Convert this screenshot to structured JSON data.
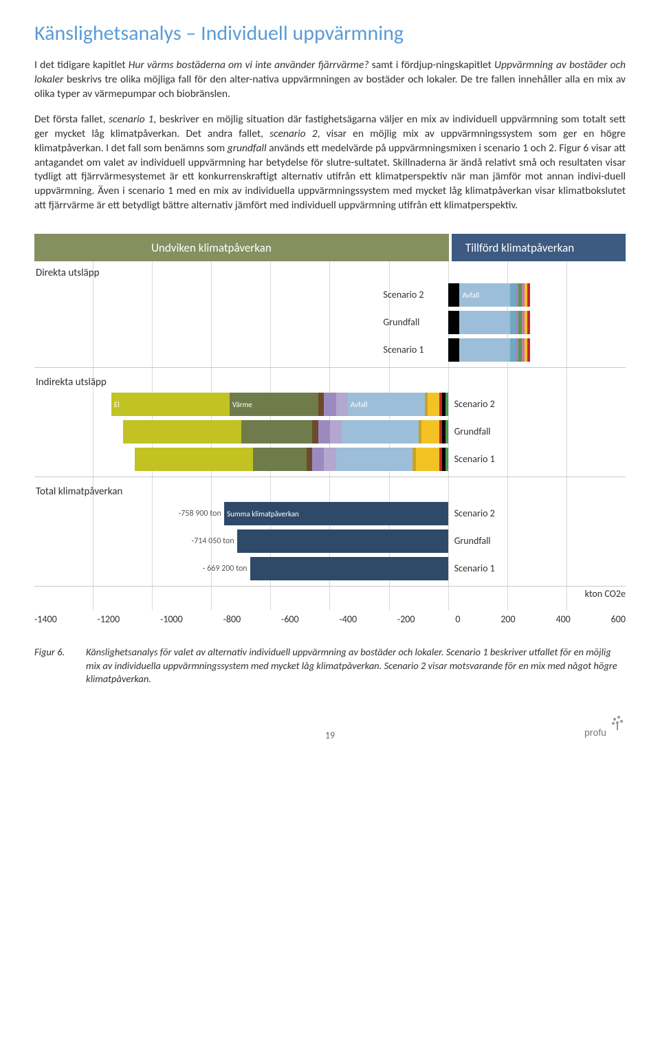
{
  "title": "Känslighetsanalys – Individuell uppvärmning",
  "para1_pre": "I det tidigare kapitlet ",
  "para1_it1": "Hur värms bostäderna om vi inte använder fjärrvärme?",
  "para1_mid": " samt i fördjup-ningskapitlet ",
  "para1_it2": "Uppvärmning av bostäder och lokaler",
  "para1_post": " beskrivs tre olika möjliga fall för den alter-nativa uppvärmningen av bostäder och lokaler. De tre fallen innehåller alla en mix av olika typer av värmepumpar och biobränslen.",
  "para2_a": "Det första fallet, ",
  "para2_it1": "scenario 1",
  "para2_b": ", beskriver en möjlig situation där fastighetsägarna väljer en mix av individuell uppvärmning som totalt sett ger mycket låg klimatpåverkan. Det andra fallet, ",
  "para2_it2": "scenario 2",
  "para2_c": ", visar en möjlig mix av uppvärmningssystem som ger en högre klimatpåverkan. I det fall som benämns som ",
  "para2_it3": "grundfall",
  "para2_d": " används ett medelvärde på uppvärmningsmixen i scenario 1 och 2. Figur 6 visar att antagandet om valet av individuell uppvärmning har betydelse för slutre-sultatet. Skillnaderna är ändå relativt små och resultaten visar tydligt att fjärrvärmesystemet är ett konkurrenskraftigt alternativ utifrån ett klimatperspektiv när man jämför mot annan indivi-duell uppvärmning. Även i scenario 1 med en mix av individuella uppvärmningssystem med mycket låg klimatpåverkan visar klimatbokslutet att fjärrvärme är ett betydligt bättre alternativ jämfört med individuell uppvärmning utifrån ett klimatperspektiv.",
  "chart": {
    "header_left": "Undviken klimatpåverkan",
    "header_right": "Tillförd klimatpåverkan",
    "xmin": -1400,
    "xmax": 600,
    "zero_pct": 70,
    "section1_label": "Direkta utsläpp",
    "section2_label": "Indirekta utsläpp",
    "section3_label": "Total klimatpåverkan",
    "unit": "kton CO2e",
    "ticks": [
      "-1400",
      "-1200",
      "-1000",
      "-800",
      "-600",
      "-400",
      "-200",
      "0",
      "200",
      "400",
      "600"
    ],
    "colors": {
      "el": "#c2c223",
      "varme": "#6f7b4a",
      "brown": "#6d4a2c",
      "violet": "#9b8abf",
      "lpurp": "#b3a7cf",
      "avfall": "#9cbed8",
      "yellow": "#f3c326",
      "gold": "#c9a227",
      "black": "#000000",
      "red": "#c62828",
      "green": "#4e9b4e",
      "navy": "#2e4a68",
      "teal": "#6ea9c2",
      "pink": "#c77ab0"
    },
    "direct_rows": [
      {
        "label": "Scenario 2",
        "pos": [
          {
            "c": "black",
            "w": 2.0
          },
          {
            "c": "avfall",
            "w": 9.0,
            "t": "Avfall"
          },
          {
            "c": "teal",
            "w": 1.0
          },
          {
            "c": "violet",
            "w": 0.5
          },
          {
            "c": "green",
            "w": 0.5
          },
          {
            "c": "pink",
            "w": 0.3
          },
          {
            "c": "yellow",
            "w": 0.3
          },
          {
            "c": "red",
            "w": 0.2
          }
        ]
      },
      {
        "label": "Grundfall",
        "pos": [
          {
            "c": "black",
            "w": 2.0
          },
          {
            "c": "avfall",
            "w": 9.0
          },
          {
            "c": "teal",
            "w": 1.0
          },
          {
            "c": "violet",
            "w": 0.5
          },
          {
            "c": "green",
            "w": 0.5
          },
          {
            "c": "pink",
            "w": 0.3
          },
          {
            "c": "yellow",
            "w": 0.3
          },
          {
            "c": "red",
            "w": 0.2
          }
        ]
      },
      {
        "label": "Scenario 1",
        "pos": [
          {
            "c": "black",
            "w": 2.0
          },
          {
            "c": "avfall",
            "w": 9.0
          },
          {
            "c": "teal",
            "w": 1.0
          },
          {
            "c": "violet",
            "w": 0.5
          },
          {
            "c": "green",
            "w": 0.5
          },
          {
            "c": "pink",
            "w": 0.3
          },
          {
            "c": "yellow",
            "w": 0.3
          },
          {
            "c": "red",
            "w": 0.2
          }
        ]
      }
    ],
    "indirect_rows": [
      {
        "label": "Scenario 2",
        "neg": [
          {
            "c": "el",
            "w": 20,
            "t": "El"
          },
          {
            "c": "varme",
            "w": 15,
            "t": "Värme"
          },
          {
            "c": "brown",
            "w": 1
          },
          {
            "c": "violet",
            "w": 2
          },
          {
            "c": "lpurp",
            "w": 2
          },
          {
            "c": "avfall",
            "w": 13,
            "t": "Avfall"
          },
          {
            "c": "gold",
            "w": 0.5
          },
          {
            "c": "yellow",
            "w": 2
          },
          {
            "c": "red",
            "w": 0.5
          },
          {
            "c": "black",
            "w": 0.5
          },
          {
            "c": "green",
            "w": 0.5
          }
        ],
        "pos": []
      },
      {
        "label": "Grundfall",
        "neg": [
          {
            "c": "el",
            "w": 20
          },
          {
            "c": "varme",
            "w": 12
          },
          {
            "c": "brown",
            "w": 1
          },
          {
            "c": "violet",
            "w": 2
          },
          {
            "c": "lpurp",
            "w": 2
          },
          {
            "c": "avfall",
            "w": 13
          },
          {
            "c": "gold",
            "w": 0.5
          },
          {
            "c": "yellow",
            "w": 3
          },
          {
            "c": "red",
            "w": 0.5
          },
          {
            "c": "black",
            "w": 0.5
          },
          {
            "c": "green",
            "w": 0.5
          }
        ],
        "pos": []
      },
      {
        "label": "Scenario 1",
        "neg": [
          {
            "c": "el",
            "w": 20
          },
          {
            "c": "varme",
            "w": 9
          },
          {
            "c": "brown",
            "w": 1
          },
          {
            "c": "violet",
            "w": 2
          },
          {
            "c": "lpurp",
            "w": 2
          },
          {
            "c": "avfall",
            "w": 13
          },
          {
            "c": "gold",
            "w": 0.5
          },
          {
            "c": "yellow",
            "w": 4
          },
          {
            "c": "red",
            "w": 0.5
          },
          {
            "c": "black",
            "w": 0.5
          },
          {
            "c": "green",
            "w": 0.5
          }
        ],
        "pos": []
      }
    ],
    "total_rows": [
      {
        "label": "Scenario 2",
        "val": "-758 900 ton",
        "neg": [
          {
            "c": "navy",
            "w": 37.9,
            "t": "Summa klimatpåverkan"
          }
        ]
      },
      {
        "label": "Grundfall",
        "val": "-714 050 ton",
        "neg": [
          {
            "c": "navy",
            "w": 35.7
          }
        ]
      },
      {
        "label": "Scenario 1",
        "val": "- 669 200 ton",
        "neg": [
          {
            "c": "navy",
            "w": 33.5
          }
        ]
      }
    ]
  },
  "caption_num": "Figur 6.",
  "caption_text": "Känslighetsanalys för valet av alternativ individuell uppvärmning av bostäder och lokaler. Scenario 1 beskriver utfallet för en möjlig mix av individuella uppvärmningssystem med mycket låg klimatpåverkan. Scenario 2 visar motsvarande för en mix med något högre klimatpåverkan.",
  "pagenum": "19",
  "logo": "profu"
}
